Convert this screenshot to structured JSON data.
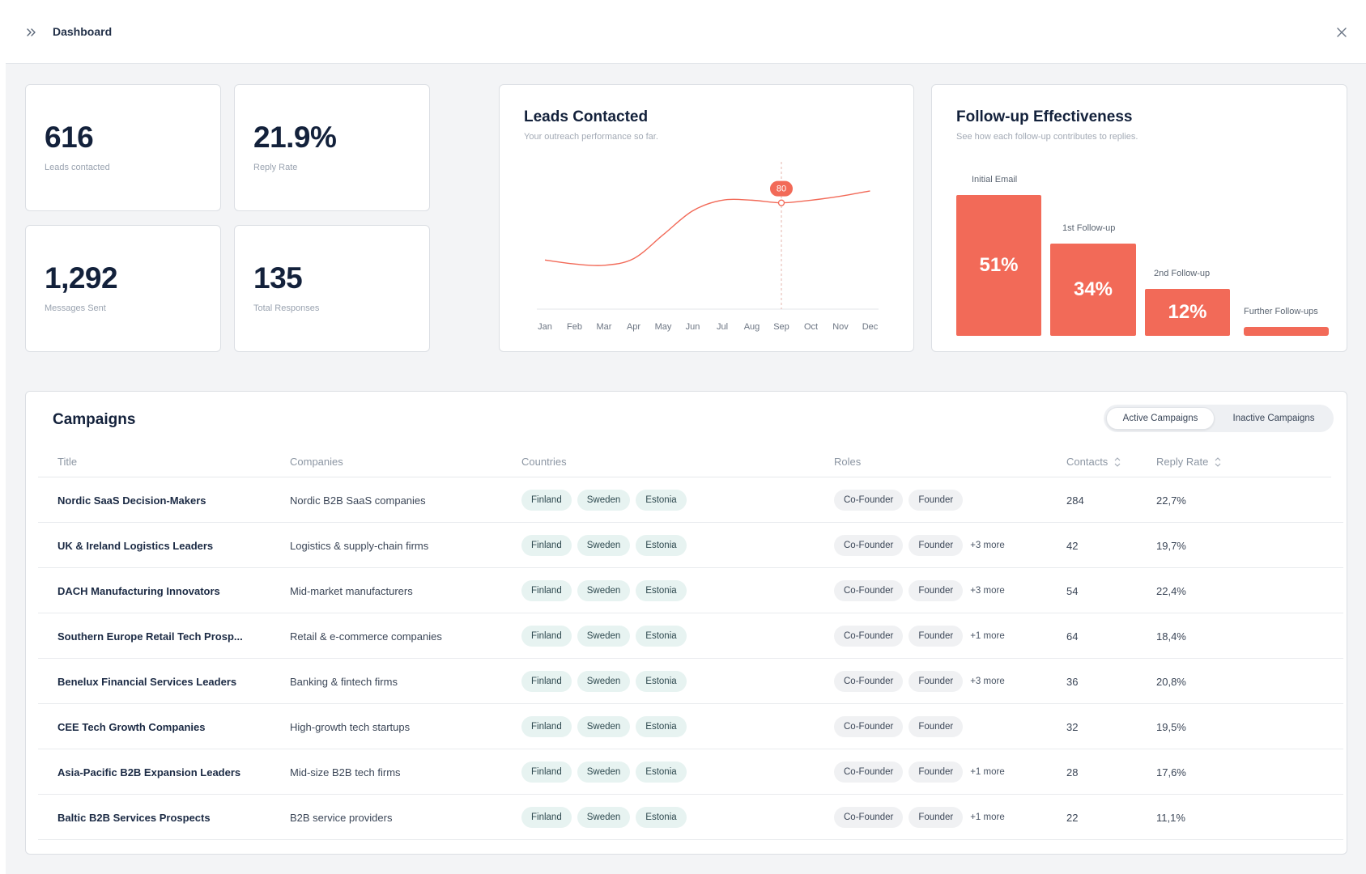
{
  "header": {
    "title": "Dashboard"
  },
  "stats": [
    {
      "value": "616",
      "label": "Leads contacted"
    },
    {
      "value": "21.9%",
      "label": "Reply Rate"
    },
    {
      "value": "1,292",
      "label": "Messages Sent"
    },
    {
      "value": "135",
      "label": "Total Responses"
    }
  ],
  "leads_chart": {
    "title": "Leads Contacted",
    "subtitle": "Your outreach performance so far.",
    "highlight_label": "80"
  },
  "followup": {
    "title": "Follow-up Effectiveness",
    "subtitle": "See how each follow-up contributes to replies.",
    "bars": [
      {
        "label": "Initial Email",
        "value_label": "51%",
        "value": 51
      },
      {
        "label": "1st Follow-up",
        "value_label": "34%",
        "value": 34
      },
      {
        "label": "2nd Follow-up",
        "value_label": "12%",
        "value": 12
      },
      {
        "label": "Further Follow-ups",
        "value_label": "",
        "value": 3
      }
    ]
  },
  "chart_data": {
    "type": "line",
    "title": "Leads Contacted",
    "x": [
      "Jan",
      "Feb",
      "Mar",
      "Apr",
      "May",
      "Jun",
      "Jul",
      "Aug",
      "Sep",
      "Oct",
      "Nov",
      "Dec"
    ],
    "series": [
      {
        "values": [
          37,
          34,
          33,
          38,
          56,
          74,
          82,
          82,
          80,
          82,
          85,
          89
        ]
      }
    ],
    "annotations": [
      {
        "x": "Sep",
        "label": "80"
      }
    ],
    "ylim": [
      0,
      120
    ],
    "grid": false,
    "color": "#f26a58"
  },
  "campaigns": {
    "title": "Campaigns",
    "tabs": {
      "active": "Active Campaigns",
      "inactive": "Inactive Campaigns"
    },
    "columns": {
      "title": "Title",
      "companies": "Companies",
      "countries": "Countries",
      "roles": "Roles",
      "contacts": "Contacts",
      "reply_rate": "Reply Rate"
    },
    "rows": [
      {
        "title": "Nordic SaaS Decision-Makers",
        "companies": "Nordic B2B SaaS companies",
        "countries": [
          "Finland",
          "Sweden",
          "Estonia"
        ],
        "roles": [
          "Co-Founder",
          "Founder"
        ],
        "more": "",
        "contacts": "284",
        "reply_rate": "22,7%"
      },
      {
        "title": "UK & Ireland Logistics Leaders",
        "companies": "Logistics & supply-chain firms",
        "countries": [
          "Finland",
          "Sweden",
          "Estonia"
        ],
        "roles": [
          "Co-Founder",
          "Founder"
        ],
        "more": "+3 more",
        "contacts": "42",
        "reply_rate": "19,7%"
      },
      {
        "title": "DACH Manufacturing Innovators",
        "companies": "Mid-market manufacturers",
        "countries": [
          "Finland",
          "Sweden",
          "Estonia"
        ],
        "roles": [
          "Co-Founder",
          "Founder"
        ],
        "more": "+3 more",
        "contacts": "54",
        "reply_rate": "22,4%"
      },
      {
        "title": "Southern Europe Retail Tech Prosp...",
        "companies": "Retail & e-commerce companies",
        "countries": [
          "Finland",
          "Sweden",
          "Estonia"
        ],
        "roles": [
          "Co-Founder",
          "Founder"
        ],
        "more": "+1 more",
        "contacts": "64",
        "reply_rate": "18,4%"
      },
      {
        "title": "Benelux Financial Services Leaders",
        "companies": "Banking & fintech firms",
        "countries": [
          "Finland",
          "Sweden",
          "Estonia"
        ],
        "roles": [
          "Co-Founder",
          "Founder"
        ],
        "more": "+3 more",
        "contacts": "36",
        "reply_rate": "20,8%"
      },
      {
        "title": "CEE Tech Growth Companies",
        "companies": "High-growth tech startups",
        "countries": [
          "Finland",
          "Sweden",
          "Estonia"
        ],
        "roles": [
          "Co-Founder",
          "Founder"
        ],
        "more": "",
        "contacts": "32",
        "reply_rate": "19,5%"
      },
      {
        "title": "Asia-Pacific B2B Expansion Leaders",
        "companies": "Mid-size B2B tech firms",
        "countries": [
          "Finland",
          "Sweden",
          "Estonia"
        ],
        "roles": [
          "Co-Founder",
          "Founder"
        ],
        "more": "+1 more",
        "contacts": "28",
        "reply_rate": "17,6%"
      },
      {
        "title": "Baltic B2B Services Prospects",
        "companies": "B2B service providers",
        "countries": [
          "Finland",
          "Sweden",
          "Estonia"
        ],
        "roles": [
          "Co-Founder",
          "Founder"
        ],
        "more": "+1 more",
        "contacts": "22",
        "reply_rate": "11,1%"
      }
    ]
  }
}
